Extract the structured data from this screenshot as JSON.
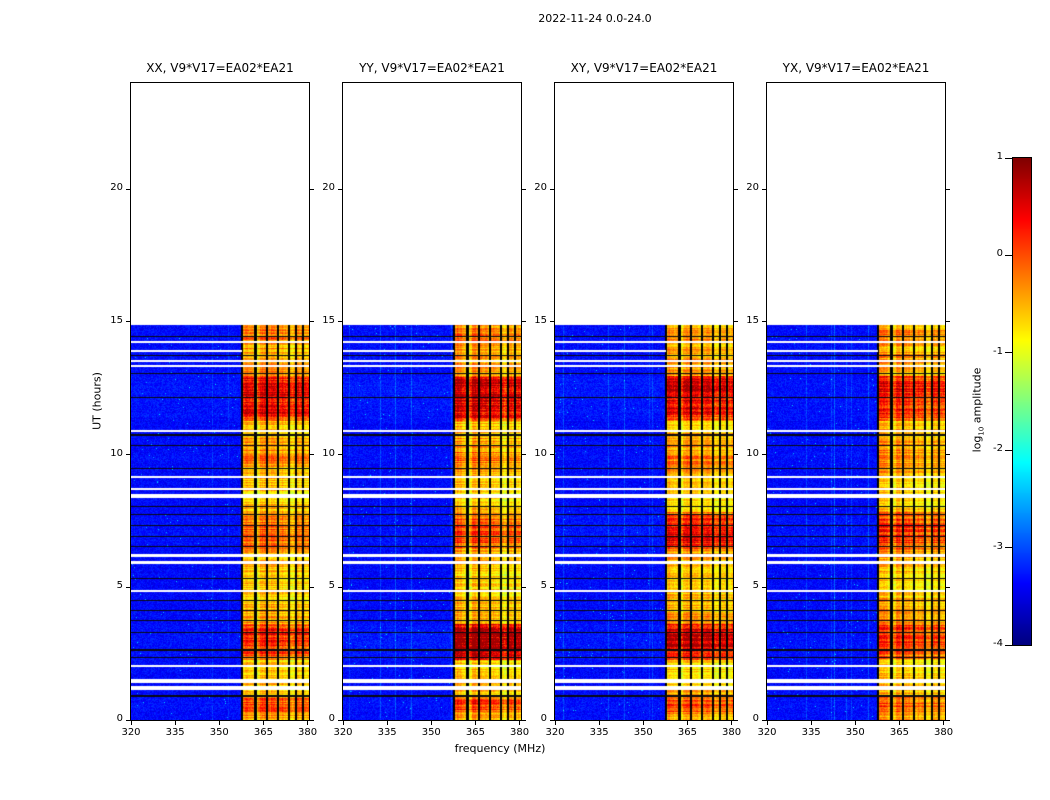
{
  "figure": {
    "title": "2022-11-24 0.0-24.0",
    "xlabel": "frequency (MHz)",
    "ylabel": "UT (hours)"
  },
  "colorbar": {
    "label_prefix": "log",
    "label_sub": "10",
    "label_suffix": " amplitude",
    "tick_labels": [
      "1",
      "0",
      "-1",
      "-2",
      "-3",
      "-4"
    ],
    "tick_values": [
      1,
      0,
      -1,
      -2,
      -3,
      -4
    ],
    "vmin": -4,
    "vmax": 1,
    "colormap": "jet"
  },
  "axes": {
    "x_tick_labels": [
      "320",
      "335",
      "350",
      "365",
      "380"
    ],
    "y_tick_labels": [
      "0",
      "5",
      "10",
      "15",
      "20"
    ]
  },
  "chart_data": {
    "type": "heatmap",
    "title": "2022-11-24 0.0-24.0",
    "xlabel": "frequency (MHz)",
    "ylabel": "UT (hours)",
    "x_range_mhz": [
      320,
      380.5
    ],
    "x_ticks_mhz": [
      320,
      335,
      350,
      365,
      380
    ],
    "y_range_hours": [
      0,
      24
    ],
    "y_ticks_hours": [
      0,
      5,
      10,
      15,
      20
    ],
    "colormap": "jet",
    "color_scale": "log10 amplitude",
    "color_range": [
      -4,
      1
    ],
    "observed_time_span_hours": [
      0,
      14.9
    ],
    "background_log_amp": -3.35,
    "rfi_band_mhz": [
      357.5,
      380.5
    ],
    "rfi_profile_log_amp": [
      [
        357.5,
        -0.7
      ],
      [
        359,
        -0.4
      ],
      [
        361,
        -0.55
      ],
      [
        363,
        -0.9
      ],
      [
        364.5,
        -0.35
      ],
      [
        366.5,
        -0.6
      ],
      [
        368,
        -0.45
      ],
      [
        370,
        -0.75
      ],
      [
        371.5,
        -0.5
      ],
      [
        373,
        -0.65
      ],
      [
        375,
        -0.85
      ],
      [
        377,
        -0.55
      ],
      [
        379,
        -0.7
      ],
      [
        380.5,
        -0.6
      ]
    ],
    "dead_channels_mhz": [
      357.7,
      362.3,
      366.2,
      369.9,
      373.6,
      376.2,
      378.4
    ],
    "time_gaps_hours": [
      [
        1.18,
        0.08
      ],
      [
        1.45,
        0.06
      ],
      [
        2.0,
        0.04
      ],
      [
        4.85,
        0.03
      ],
      [
        5.92,
        0.05
      ],
      [
        6.18,
        0.04
      ],
      [
        8.42,
        0.06
      ],
      [
        8.68,
        0.04
      ],
      [
        9.15,
        0.04
      ],
      [
        10.88,
        0.035
      ],
      [
        13.32,
        0.05
      ],
      [
        13.52,
        0.04
      ],
      [
        14.22,
        0.05
      ]
    ],
    "partial_gaps_hours": [
      [
        13.88,
        0.03,
        357.5
      ]
    ],
    "flagged_times_hours": [
      [
        0.88,
        0.025
      ],
      [
        2.32,
        0.02
      ],
      [
        2.62,
        0.02
      ],
      [
        3.28,
        0.02
      ],
      [
        3.72,
        0.02
      ],
      [
        4.12,
        0.02
      ],
      [
        4.48,
        0.02
      ],
      [
        5.32,
        0.02
      ],
      [
        6.52,
        0.02
      ],
      [
        6.88,
        0.02
      ],
      [
        7.32,
        0.02
      ],
      [
        7.72,
        0.02
      ],
      [
        8.02,
        0.02
      ],
      [
        9.45,
        0.02
      ],
      [
        10.32,
        0.02
      ],
      [
        10.72,
        0.02
      ],
      [
        12.12,
        0.02
      ],
      [
        13.02,
        0.02
      ],
      [
        13.72,
        0.02
      ],
      [
        14.42,
        0.02
      ]
    ],
    "panels": [
      {
        "key": "xx",
        "title": "XX, V9*V17=EA02*EA21",
        "hot_intervals": [
          [
            0.3,
            0.95,
            1.12
          ],
          [
            2.25,
            3.6,
            1.18
          ],
          [
            6.45,
            7.85,
            1.08
          ],
          [
            9.6,
            10.1,
            1.06
          ],
          [
            11.25,
            12.95,
            1.3
          ],
          [
            14.15,
            14.9,
            1.12
          ]
        ]
      },
      {
        "key": "yy",
        "title": "YY, V9*V17=EA02*EA21",
        "hot_intervals": [
          [
            0.3,
            0.95,
            1.15
          ],
          [
            2.25,
            3.6,
            1.38
          ],
          [
            6.45,
            7.85,
            1.12
          ],
          [
            9.6,
            10.1,
            1.07
          ],
          [
            11.25,
            12.95,
            1.35
          ],
          [
            14.15,
            14.9,
            1.15
          ]
        ]
      },
      {
        "key": "xy",
        "title": "XY, V9*V17=EA02*EA21",
        "hot_intervals": [
          [
            0.3,
            0.95,
            1.12
          ],
          [
            2.25,
            3.6,
            1.3
          ],
          [
            6.45,
            7.85,
            1.22
          ],
          [
            9.6,
            10.1,
            1.06
          ],
          [
            11.25,
            12.95,
            1.32
          ],
          [
            14.15,
            14.9,
            1.1
          ]
        ]
      },
      {
        "key": "yx",
        "title": "YX, V9*V17=EA02*EA21",
        "hot_intervals": [
          [
            0.3,
            0.95,
            1.1
          ],
          [
            2.25,
            3.6,
            1.15
          ],
          [
            6.45,
            7.85,
            1.15
          ],
          [
            9.6,
            10.1,
            1.05
          ],
          [
            11.25,
            12.95,
            1.25
          ],
          [
            14.15,
            14.9,
            1.1
          ]
        ]
      }
    ]
  }
}
